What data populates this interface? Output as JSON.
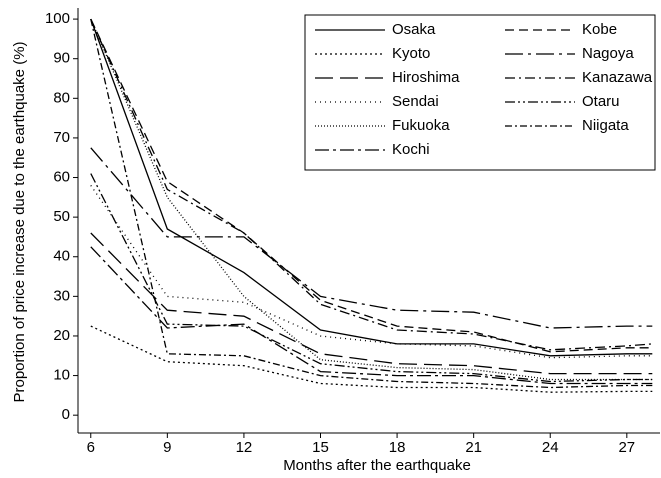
{
  "chart_data": {
    "type": "line",
    "x_label": "Months after the earthquake",
    "y_label": "Proportion of price increase due to the earthquake (%)",
    "x": [
      6,
      9,
      12,
      15,
      18,
      21,
      24,
      27,
      28
    ],
    "xlim": [
      5.5,
      28.3
    ],
    "ylim": [
      -4.5,
      102.8
    ],
    "xticks": [
      6,
      9,
      12,
      15,
      18,
      21,
      24,
      27
    ],
    "yticks": [
      0,
      10,
      20,
      30,
      40,
      50,
      60,
      70,
      80,
      90,
      100
    ],
    "legend": "top-right",
    "grid": false,
    "series": [
      {
        "name": "Osaka",
        "color": "#000000",
        "dash": "solid",
        "values": [
          100,
          47,
          36,
          21.5,
          18,
          18,
          15,
          15.5,
          15.5
        ]
      },
      {
        "name": "Kobe",
        "color": "#000000",
        "dash": "dashed",
        "values": [
          100,
          59,
          46,
          29,
          22.5,
          21,
          16,
          17,
          17
        ]
      },
      {
        "name": "Kyoto",
        "color": "#000000",
        "dash": "dotted",
        "values": [
          22.5,
          13.5,
          12.5,
          8,
          7,
          7,
          5.8,
          6,
          6
        ]
      },
      {
        "name": "Nagoya",
        "color": "#000000",
        "dash": "longdashdot",
        "values": [
          67.5,
          45,
          45,
          30,
          26.5,
          26,
          22,
          22.5,
          22.5
        ]
      },
      {
        "name": "Hiroshima",
        "color": "#000000",
        "dash": "longdash",
        "values": [
          46,
          26.5,
          25,
          15.5,
          13,
          12.5,
          10.5,
          10.5,
          10.5
        ]
      },
      {
        "name": "Kanazawa",
        "color": "#000000",
        "dash": "dashdot",
        "values": [
          100,
          57,
          46,
          28,
          21.5,
          20.5,
          16.5,
          17.5,
          18
        ]
      },
      {
        "name": "Sendai",
        "color": "#000000",
        "dash": "sparsedot",
        "values": [
          58,
          30,
          28.5,
          20,
          18,
          17.5,
          14.5,
          15,
          15
        ]
      },
      {
        "name": "Otaru",
        "color": "#000000",
        "dash": "dashdotdot",
        "values": [
          61,
          23,
          22.5,
          13,
          11,
          10.5,
          8.5,
          9,
          9
        ]
      },
      {
        "name": "Fukuoka",
        "color": "#000000",
        "dash": "densedot",
        "values": [
          100,
          55,
          30,
          14,
          12,
          11.5,
          9,
          9,
          9
        ]
      },
      {
        "name": "Niigata",
        "color": "#000000",
        "dash": "shortdashdot",
        "values": [
          100,
          15.5,
          15,
          10,
          8.5,
          8,
          7,
          7.5,
          7.5
        ]
      },
      {
        "name": "Kochi",
        "color": "#000000",
        "dash": "longdashdot2",
        "values": [
          42.5,
          22,
          23,
          11,
          10,
          10,
          8,
          8,
          8
        ]
      }
    ]
  }
}
